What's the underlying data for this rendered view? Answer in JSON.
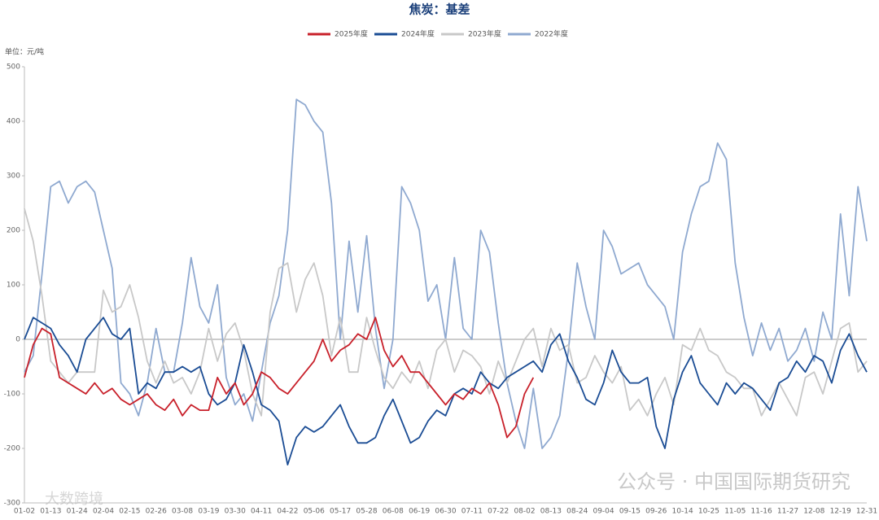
{
  "chart_data": {
    "type": "line",
    "title": "焦炭：基差",
    "unit_label": "单位：元/吨",
    "categories": [
      "01-02",
      null,
      null,
      "01-13",
      null,
      null,
      "01-24",
      null,
      null,
      "02-04",
      null,
      null,
      "02-15",
      null,
      null,
      "02-26",
      null,
      null,
      "03-08",
      null,
      null,
      "03-19",
      null,
      null,
      "03-30",
      null,
      null,
      "04-11",
      null,
      null,
      "04-22",
      null,
      null,
      "05-06",
      null,
      null,
      "05-17",
      null,
      null,
      "05-28",
      null,
      null,
      "06-08",
      null,
      null,
      "06-19",
      null,
      null,
      "06-30",
      null,
      null,
      "07-11",
      null,
      null,
      "07-22",
      null,
      null,
      "08-02",
      null,
      null,
      "08-13",
      null,
      null,
      "08-24",
      null,
      null,
      "09-04",
      null,
      null,
      "09-15",
      null,
      null,
      "09-26",
      null,
      null,
      "10-14",
      null,
      null,
      "10-25",
      null,
      null,
      "11-05",
      null,
      null,
      "11-16",
      null,
      null,
      "11-27",
      null,
      null,
      "12-08",
      null,
      null,
      "12-19",
      null,
      null,
      "12-31"
    ],
    "ylim": [
      -300,
      500
    ],
    "yticks": [
      -300,
      -200,
      -100,
      0,
      100,
      200,
      300,
      400,
      500
    ],
    "series": [
      {
        "name": "2025年度",
        "color": "#c8202a",
        "values": [
          -70,
          -10,
          20,
          10,
          -70,
          -80,
          -90,
          -100,
          -80,
          -100,
          -90,
          -110,
          -120,
          -110,
          -100,
          -120,
          -130,
          -110,
          -140,
          -120,
          -130,
          -130,
          -70,
          -100,
          -80,
          -120,
          -100,
          -60,
          -70,
          -90,
          -100,
          -80,
          -60,
          -40,
          0,
          -40,
          -20,
          -10,
          10,
          0,
          40,
          -20,
          -50,
          -30,
          -60,
          -60,
          -80,
          -100,
          -120,
          -100,
          -110,
          -90,
          -100,
          -80,
          -120,
          -180,
          -160,
          -100,
          -70,
          null,
          null,
          null,
          null,
          null,
          null,
          null,
          null,
          null,
          null,
          null,
          null,
          null,
          null,
          null,
          null,
          null,
          null,
          null,
          null,
          null,
          null,
          null,
          null,
          null,
          null,
          null,
          null,
          null,
          null,
          null,
          null,
          null,
          null,
          null,
          null,
          null,
          null
        ]
      },
      {
        "name": "2024年度",
        "color": "#1a4c94",
        "values": [
          0,
          40,
          30,
          20,
          -10,
          -30,
          -60,
          0,
          20,
          40,
          10,
          0,
          20,
          -100,
          -80,
          -90,
          -60,
          -60,
          -50,
          -60,
          -50,
          -100,
          -120,
          -110,
          -80,
          -10,
          -60,
          -120,
          -130,
          -150,
          -230,
          -180,
          -160,
          -170,
          -160,
          -140,
          -120,
          -160,
          -190,
          -190,
          -180,
          -140,
          -110,
          -150,
          -190,
          -180,
          -150,
          -130,
          -140,
          -100,
          -90,
          -100,
          -60,
          -80,
          -90,
          -70,
          -60,
          -50,
          -40,
          -60,
          -10,
          10,
          -40,
          -70,
          -110,
          -120,
          -80,
          -20,
          -60,
          -80,
          -80,
          -70,
          -160,
          -200,
          -110,
          -60,
          -30,
          -80,
          -100,
          -120,
          -80,
          -100,
          -80,
          -90,
          -110,
          -130,
          -80,
          -70,
          -40,
          -60,
          -30,
          -40,
          -80,
          -20,
          10,
          -30,
          -60
        ]
      },
      {
        "name": "2023年度",
        "color": "#c8c8c8",
        "values": [
          240,
          180,
          80,
          -40,
          -60,
          -80,
          -60,
          -60,
          -60,
          90,
          50,
          60,
          100,
          40,
          -40,
          -80,
          -40,
          -80,
          -70,
          -100,
          -60,
          20,
          -40,
          10,
          30,
          -20,
          -100,
          -140,
          50,
          130,
          140,
          50,
          110,
          140,
          80,
          -30,
          40,
          -60,
          -60,
          40,
          -20,
          -70,
          -90,
          -60,
          -80,
          -40,
          -90,
          -20,
          0,
          -60,
          -20,
          -30,
          -50,
          -100,
          -40,
          -80,
          -40,
          0,
          20,
          -50,
          20,
          -20,
          -10,
          -80,
          -70,
          -30,
          -60,
          -80,
          -50,
          -130,
          -110,
          -140,
          -100,
          -70,
          -120,
          -10,
          -20,
          20,
          -20,
          -30,
          -60,
          -70,
          -90,
          -90,
          -140,
          -110,
          -80,
          -110,
          -140,
          -70,
          -60,
          -100,
          -40,
          20,
          30,
          -60,
          -40
        ]
      },
      {
        "name": "2022年度",
        "color": "#8fa9d0",
        "values": [
          -60,
          -30,
          120,
          280,
          290,
          250,
          280,
          290,
          270,
          200,
          130,
          -80,
          -100,
          -140,
          -80,
          20,
          -60,
          -60,
          30,
          150,
          60,
          30,
          100,
          -70,
          -120,
          -100,
          -150,
          -60,
          30,
          80,
          200,
          440,
          430,
          400,
          380,
          250,
          0,
          180,
          50,
          190,
          20,
          -90,
          0,
          280,
          250,
          200,
          70,
          100,
          0,
          150,
          20,
          0,
          200,
          160,
          30,
          -80,
          -150,
          -200,
          -90,
          -200,
          -180,
          -140,
          -20,
          140,
          60,
          0,
          200,
          170,
          120,
          130,
          140,
          100,
          80,
          60,
          0,
          160,
          230,
          280,
          290,
          360,
          330,
          140,
          40,
          -30,
          30,
          -20,
          20,
          -40,
          -20,
          20,
          -40,
          50,
          0,
          230,
          80,
          280,
          180
        ]
      }
    ],
    "watermarks": [
      "公众号 · 中国国际期货研究",
      "大数跨境"
    ]
  }
}
